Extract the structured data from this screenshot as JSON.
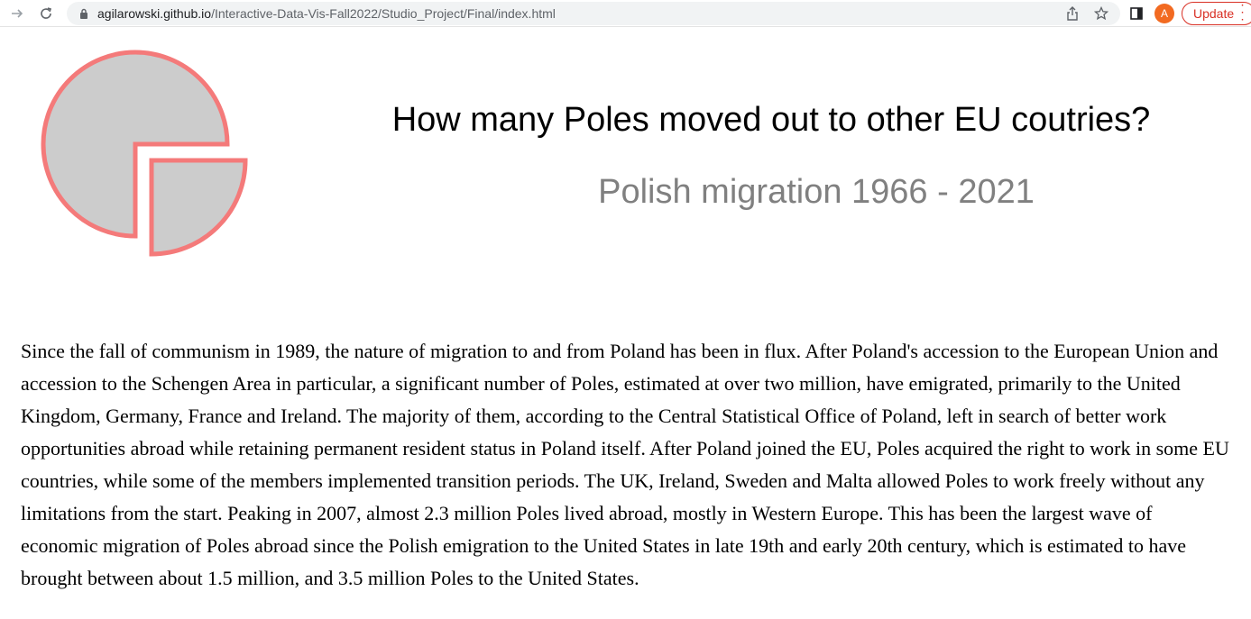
{
  "browser": {
    "url_host": "agilarowski.github.io",
    "url_path": "/Interactive-Data-Vis-Fall2022/Studio_Project/Final/index.html",
    "avatar_letter": "A",
    "update_label": "Update",
    "icons": [
      "forward-arrow-icon",
      "reload-icon",
      "lock-icon",
      "share-icon",
      "star-icon",
      "side-panel-icon",
      "more-icon"
    ],
    "accent_color": "#d93025"
  },
  "page": {
    "title": "How many Poles moved out to other EU coutries?",
    "subtitle": "Polish migration 1966 - 2021",
    "intro": "Since the fall of communism in 1989, the nature of migration to and from Poland has been in flux. After Poland's accession to the European Union and accession to the Schengen Area in particular, a significant number of Poles, estimated at over two million, have emigrated, primarily to the United Kingdom, Germany, France and Ireland. The majority of them, according to the Central Statistical Office of Poland, left in search of better work opportunities abroad while retaining permanent resident status in Poland itself. After Poland joined the EU, Poles acquired the right to work in some EU countries, while some of the members implemented transition periods. The UK, Ireland, Sweden and Malta allowed Poles to work freely without any limitations from the start. Peaking in 2007, almost 2.3 million Poles lived abroad, mostly in Western Europe. This has been the largest wave of economic migration of Poles abroad since the Polish emigration to the United States in late 19th and early 20th century, which is estimated to have brought between about 1.5 million, and 3.5 million Poles to the United States.",
    "logo": {
      "icon": "pie-chart-logo-icon",
      "fill_color": "#cccccc",
      "stroke_color": "#f47a7a"
    }
  }
}
